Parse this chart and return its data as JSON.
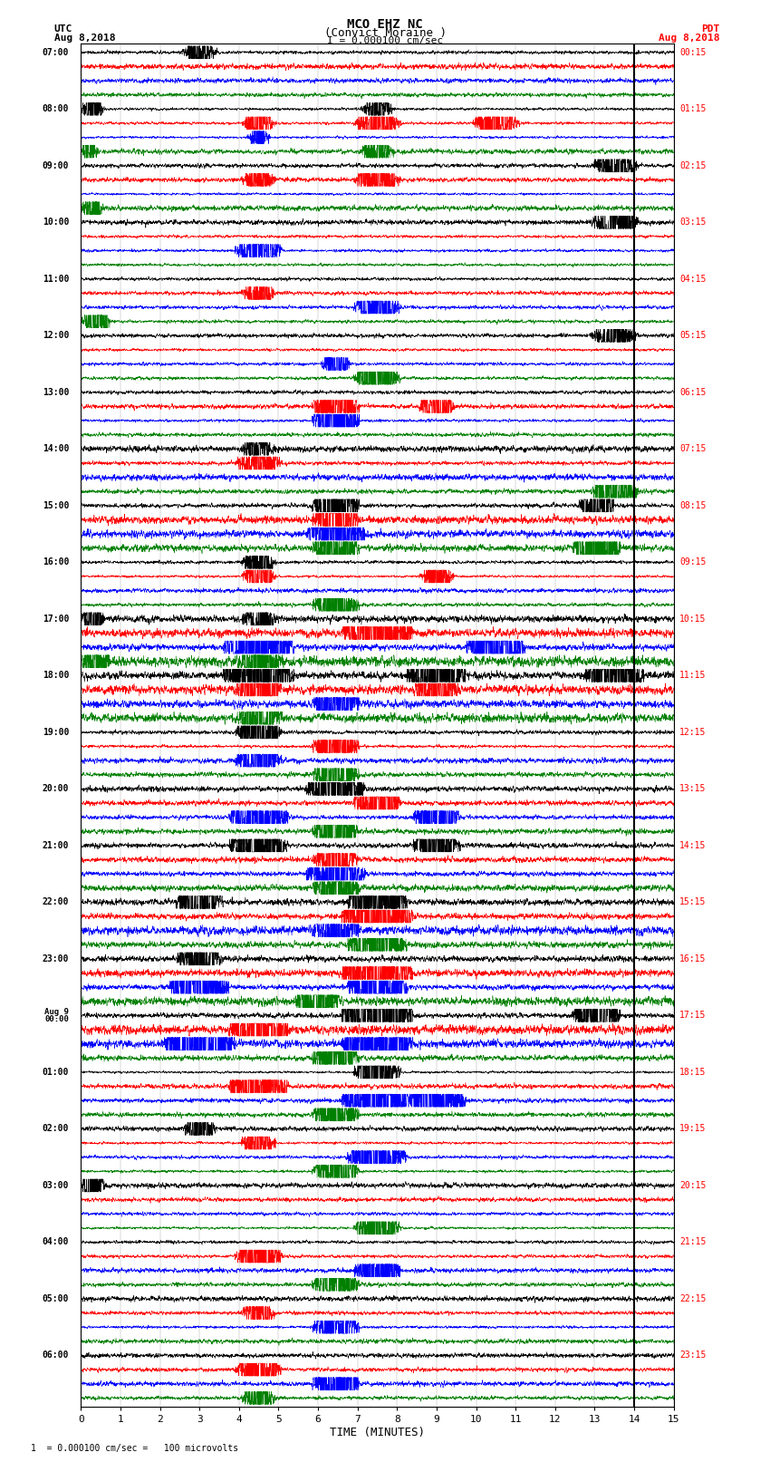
{
  "title_line1": "MCO EHZ NC",
  "title_line2": "(Convict Moraine )",
  "scale_label": "I = 0.000100 cm/sec",
  "utc_label": "UTC\nAug 8,2018",
  "pdt_label": "PDT\nAug 8,2018",
  "xlabel": "TIME (MINUTES)",
  "footer": "1  = 0.000100 cm/sec =   100 microvolts",
  "left_times": [
    "07:00",
    "",
    "",
    "",
    "08:00",
    "",
    "",
    "",
    "09:00",
    "",
    "",
    "",
    "10:00",
    "",
    "",
    "",
    "11:00",
    "",
    "",
    "",
    "12:00",
    "",
    "",
    "",
    "13:00",
    "",
    "",
    "",
    "14:00",
    "",
    "",
    "",
    "15:00",
    "",
    "",
    "",
    "16:00",
    "",
    "",
    "",
    "17:00",
    "",
    "",
    "",
    "18:00",
    "",
    "",
    "",
    "19:00",
    "",
    "",
    "",
    "20:00",
    "",
    "",
    "",
    "21:00",
    "",
    "",
    "",
    "22:00",
    "",
    "",
    "",
    "23:00",
    "",
    "",
    "",
    "Aug 9\n00:00",
    "",
    "",
    "",
    "01:00",
    "",
    "",
    "",
    "02:00",
    "",
    "",
    "",
    "03:00",
    "",
    "",
    "",
    "04:00",
    "",
    "",
    "",
    "05:00",
    "",
    "",
    "",
    "06:00",
    "",
    "",
    ""
  ],
  "right_times": [
    "00:15",
    "",
    "",
    "",
    "01:15",
    "",
    "",
    "",
    "02:15",
    "",
    "",
    "",
    "03:15",
    "",
    "",
    "",
    "04:15",
    "",
    "",
    "",
    "05:15",
    "",
    "",
    "",
    "06:15",
    "",
    "",
    "",
    "07:15",
    "",
    "",
    "",
    "08:15",
    "",
    "",
    "",
    "09:15",
    "",
    "",
    "",
    "10:15",
    "",
    "",
    "",
    "11:15",
    "",
    "",
    "",
    "12:15",
    "",
    "",
    "",
    "13:15",
    "",
    "",
    "",
    "14:15",
    "",
    "",
    "",
    "15:15",
    "",
    "",
    "",
    "16:15",
    "",
    "",
    "",
    "17:15",
    "",
    "",
    "",
    "18:15",
    "",
    "",
    "",
    "19:15",
    "",
    "",
    "",
    "20:15",
    "",
    "",
    "",
    "21:15",
    "",
    "",
    "",
    "22:15",
    "",
    "",
    "",
    "23:15",
    "",
    "",
    ""
  ],
  "colors": [
    "black",
    "red",
    "blue",
    "green"
  ],
  "n_rows": 96,
  "x_min": 0,
  "x_max": 15,
  "x_ticks": [
    0,
    1,
    2,
    3,
    4,
    5,
    6,
    7,
    8,
    9,
    10,
    11,
    12,
    13,
    14,
    15
  ],
  "vertical_line_x": 14.0,
  "background_color": "white",
  "seed": 42,
  "fig_width": 8.5,
  "fig_height": 16.13,
  "dpi": 100
}
